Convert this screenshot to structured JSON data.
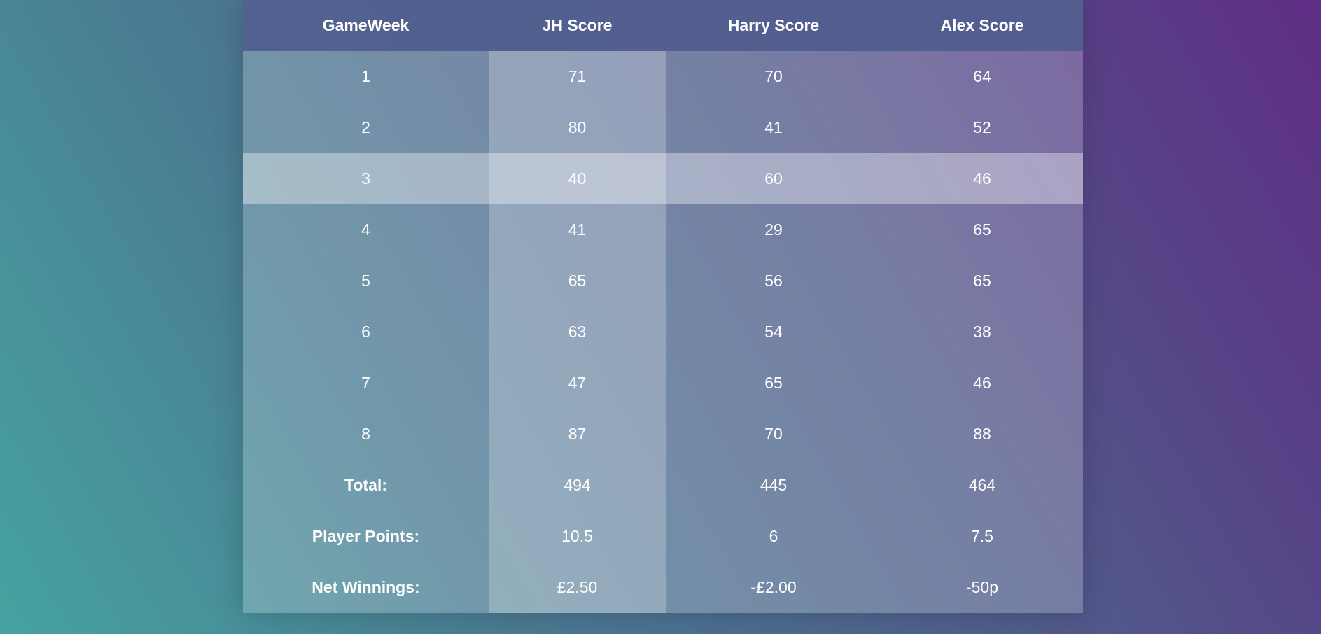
{
  "table": {
    "headers": [
      "GameWeek",
      "JH Score",
      "Harry Score",
      "Alex Score"
    ],
    "rows": [
      [
        "1",
        "71",
        "70",
        "64"
      ],
      [
        "2",
        "80",
        "41",
        "52"
      ],
      [
        "3",
        "40",
        "60",
        "46"
      ],
      [
        "4",
        "41",
        "29",
        "65"
      ],
      [
        "5",
        "65",
        "56",
        "65"
      ],
      [
        "6",
        "63",
        "54",
        "38"
      ],
      [
        "7",
        "47",
        "65",
        "46"
      ],
      [
        "8",
        "87",
        "70",
        "88"
      ]
    ],
    "summary_rows": [
      [
        "Total:",
        "494",
        "445",
        "464"
      ],
      [
        "Player Points:",
        "10.5",
        "6",
        "7.5"
      ],
      [
        "Net Winnings:",
        "£2.50",
        "-£2.00",
        "-50p"
      ]
    ],
    "highlighted_row_gameweek": "3"
  }
}
